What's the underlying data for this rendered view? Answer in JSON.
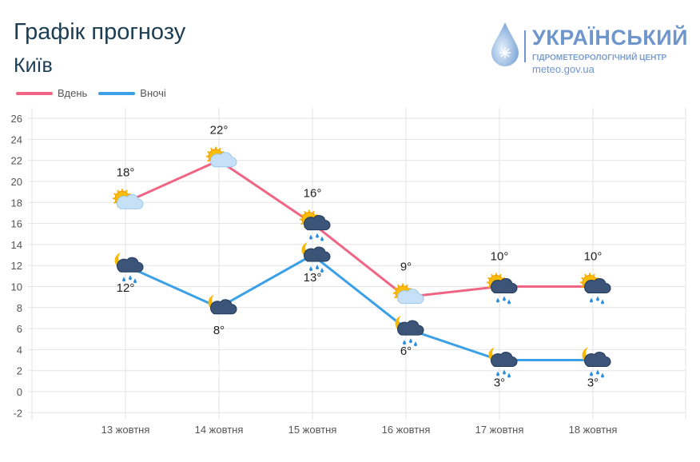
{
  "header": {
    "title": "Графік прогнозу",
    "city": "Київ"
  },
  "logo": {
    "name": "УКРАЇНСЬКИЙ",
    "subtitle": "ГІДРОМЕТЕОРОЛОГІЧНИЙ ЦЕНТР",
    "url": "meteo.gov.ua"
  },
  "chart_data": {
    "type": "line",
    "categories": [
      "13 жовтня",
      "14 жовтня",
      "15 жовтня",
      "16 жовтня",
      "17 жовтня",
      "18 жовтня"
    ],
    "ylim": [
      -2,
      26
    ],
    "yticks": [
      -2,
      0,
      2,
      4,
      6,
      8,
      10,
      12,
      14,
      16,
      18,
      20,
      22,
      24,
      26
    ],
    "grid": true,
    "legend_position": "top-left",
    "series": [
      {
        "name": "Вдень",
        "color": "#f06584",
        "values": [
          18,
          22,
          16,
          9,
          10,
          10
        ],
        "labels": [
          "18°",
          "22°",
          "16°",
          "9°",
          "10°",
          "10°"
        ],
        "icons": [
          "sun-cloud",
          "sun-cloud",
          "sun-rain-cloud",
          "sun-cloud",
          "sun-rain-cloud",
          "sun-rain-cloud"
        ]
      },
      {
        "name": "Вночі",
        "color": "#3ba0e6",
        "values": [
          12,
          8,
          13,
          6,
          3,
          3
        ],
        "labels": [
          "12°",
          "8°",
          "13°",
          "6°",
          "3°",
          "3°"
        ],
        "icons": [
          "moon-rain-cloud",
          "moon-cloud",
          "moon-rain-cloud",
          "moon-rain-cloud",
          "moon-rain-cloud",
          "moon-rain-cloud"
        ]
      }
    ]
  }
}
